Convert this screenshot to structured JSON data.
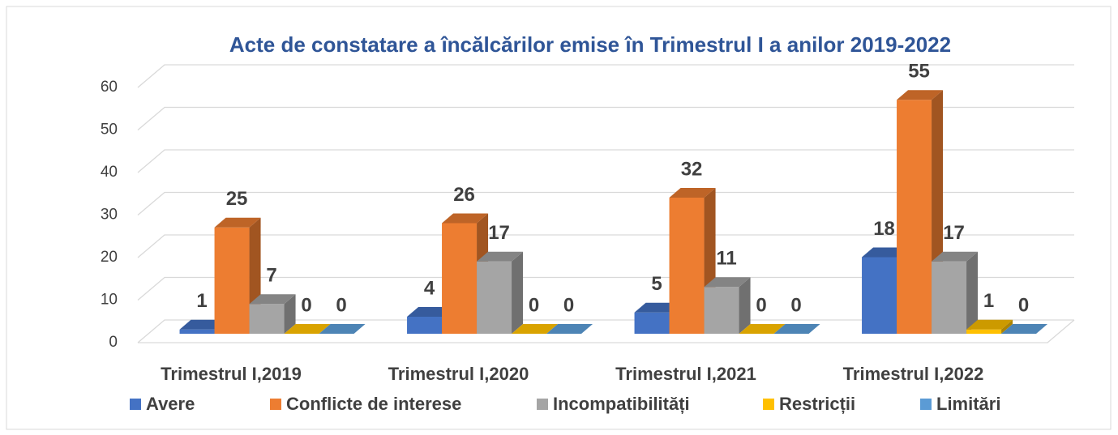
{
  "chart_data": {
    "type": "bar",
    "title": "Acte de constatare a încălcărilor emise în Trimestrul I a anilor 2019-2022",
    "categories": [
      "Trimestrul I,2019",
      "Trimestrul I,2020",
      "Trimestrul I,2021",
      "Trimestrul I,2022"
    ],
    "series": [
      {
        "name": "Avere",
        "color": "#4472c4",
        "values": [
          1,
          4,
          5,
          18
        ]
      },
      {
        "name": "Conflicte de interese",
        "color": "#ed7d31",
        "values": [
          25,
          26,
          32,
          55
        ]
      },
      {
        "name": "Incompatibilități",
        "color": "#a5a5a5",
        "values": [
          7,
          17,
          11,
          17
        ]
      },
      {
        "name": "Restricții",
        "color": "#ffc000",
        "values": [
          0,
          0,
          0,
          1
        ]
      },
      {
        "name": "Limitări",
        "color": "#5b9bd5",
        "values": [
          0,
          0,
          0,
          0
        ]
      }
    ],
    "ylim": [
      0,
      60
    ],
    "yticks": [
      0,
      10,
      20,
      30,
      40,
      50,
      60
    ],
    "grid": true,
    "legend": "bottom"
  }
}
